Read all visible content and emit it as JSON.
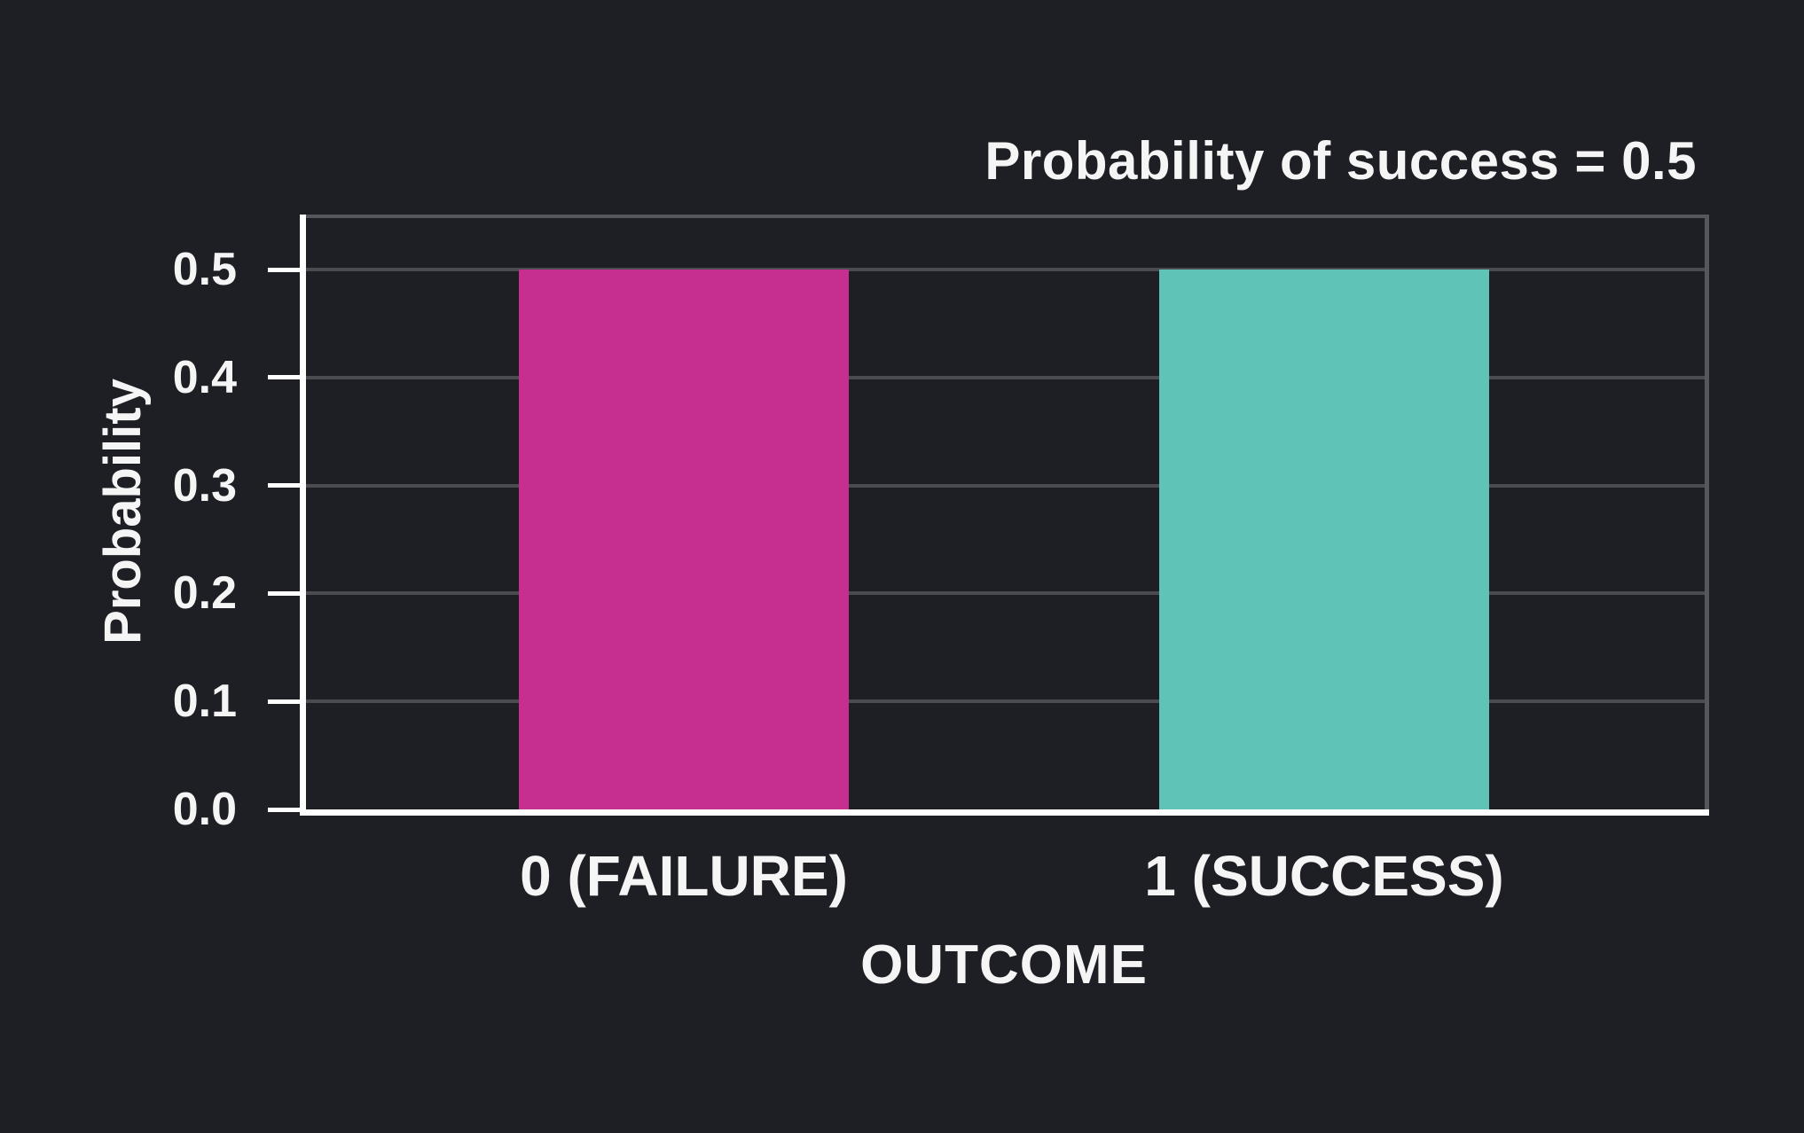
{
  "chart_data": {
    "type": "bar",
    "title": "Probability of success = 0.5",
    "xlabel": "OUTCOME",
    "ylabel": "Probability",
    "categories": [
      "0 (FAILURE)",
      "1 (SUCCESS)"
    ],
    "values": [
      0.5,
      0.5
    ],
    "series_colors": [
      "#c62f90",
      "#5fc4b7"
    ],
    "yticks": [
      "0.0",
      "0.1",
      "0.2",
      "0.3",
      "0.4",
      "0.5"
    ],
    "ytick_values": [
      0,
      0.1,
      0.2,
      0.3,
      0.4,
      0.5
    ],
    "ylim": [
      0,
      0.55
    ],
    "grid": "horizontal",
    "legend": "none",
    "colors": {
      "background": "#1d1f24",
      "grid": "#4a4c51",
      "spine": "#55575c",
      "axis": "#ffffff",
      "text": "#f5f5f5"
    }
  }
}
